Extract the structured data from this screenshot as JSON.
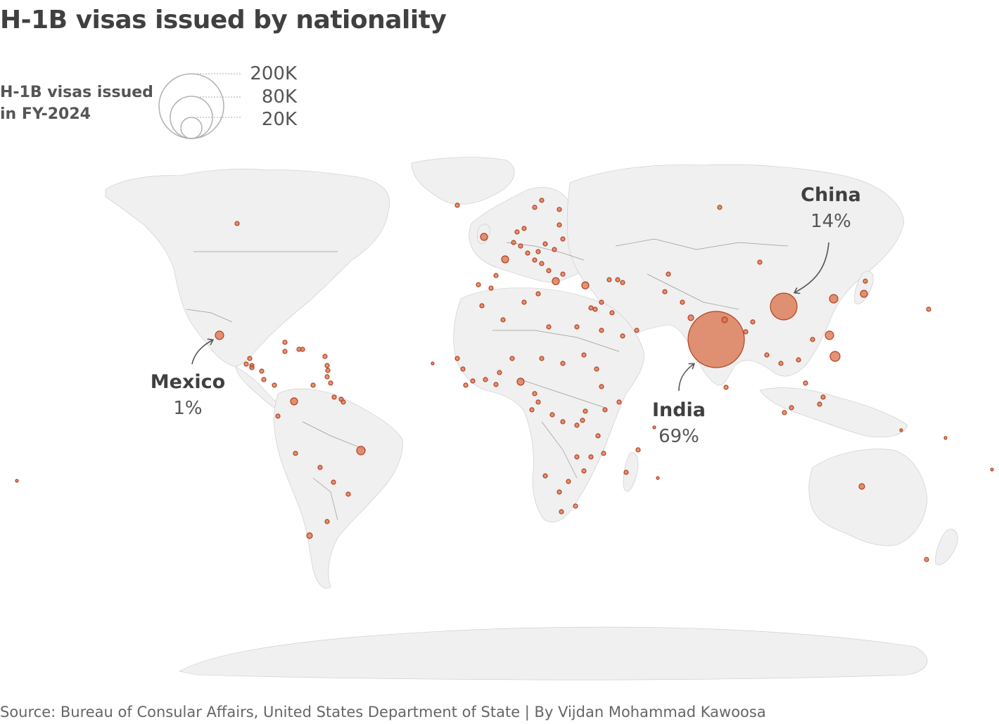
{
  "title": "H-1B visas issued by nationality",
  "legend": {
    "title_line1": "H-1B visas issued",
    "title_line2": "in FY-2024",
    "labels": [
      "200K",
      "80K",
      "20K"
    ],
    "values": [
      200000,
      80000,
      20000
    ]
  },
  "colors": {
    "bubble_fill": "#d9704a",
    "bubble_stroke": "#b5401e",
    "land": "#f0f0f0",
    "border": "#9a9a9a",
    "legend_stroke": "#b0b0b0",
    "text_dark": "#404040",
    "text_mid": "#555555"
  },
  "annotations": {
    "china": {
      "name": "China",
      "pct": "14%"
    },
    "india": {
      "name": "India",
      "pct": "69%"
    },
    "mexico": {
      "name": "Mexico",
      "pct": "1%"
    }
  },
  "source": "Source: Bureau of Consular Affairs, United States Department of State | By Vijdan Mohammad Kawoosa"
}
